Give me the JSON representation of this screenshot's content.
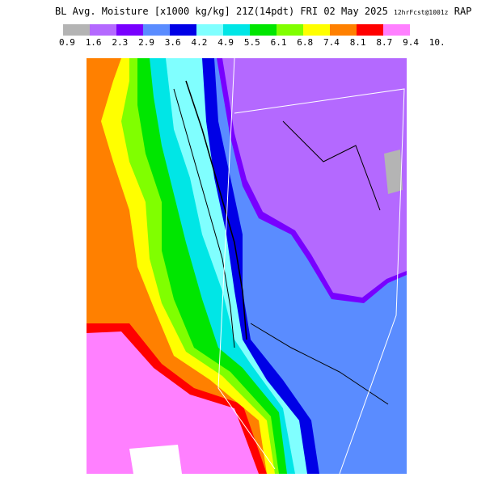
{
  "header": {
    "title": "BL Avg. Moisture [x1000 kg/kg] 21Z(14pdt) FRI 02 May 2025",
    "forecast": "12hrFcst@1001z",
    "model": "RAP"
  },
  "colorbar": {
    "labels": [
      "0.9",
      "1.6",
      "2.3",
      "2.9",
      "3.6",
      "4.2",
      "4.9",
      "5.5",
      "6.1",
      "6.8",
      "7.4",
      "8.1",
      "8.7",
      "9.4",
      "10."
    ]
  }
}
